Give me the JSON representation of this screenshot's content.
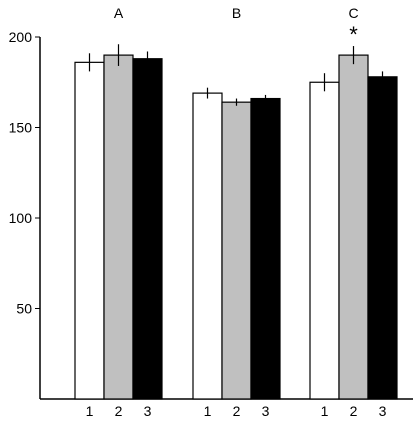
{
  "chart_data": {
    "type": "bar",
    "title": "",
    "xlabel": "",
    "ylabel": "",
    "ylim": [
      0,
      200
    ],
    "yticks": [
      50,
      100,
      150,
      200
    ],
    "grid": false,
    "legend": "none",
    "groups": [
      {
        "label": "A",
        "bars": [
          {
            "label": "1",
            "value": 186,
            "error": 5
          },
          {
            "label": "2",
            "value": 190,
            "error": 6
          },
          {
            "label": "3",
            "value": 188,
            "error": 4
          }
        ]
      },
      {
        "label": "B",
        "bars": [
          {
            "label": "1",
            "value": 169,
            "error": 3
          },
          {
            "label": "2",
            "value": 164,
            "error": 2
          },
          {
            "label": "3",
            "value": 166,
            "error": 2
          }
        ]
      },
      {
        "label": "C",
        "bars": [
          {
            "label": "1",
            "value": 175,
            "error": 5
          },
          {
            "label": "2",
            "value": 190,
            "error": 5,
            "annotation": "*"
          },
          {
            "label": "3",
            "value": 178,
            "error": 3
          }
        ]
      }
    ],
    "colors": [
      "#ffffff",
      "#c0c0c0",
      "#000000"
    ]
  }
}
